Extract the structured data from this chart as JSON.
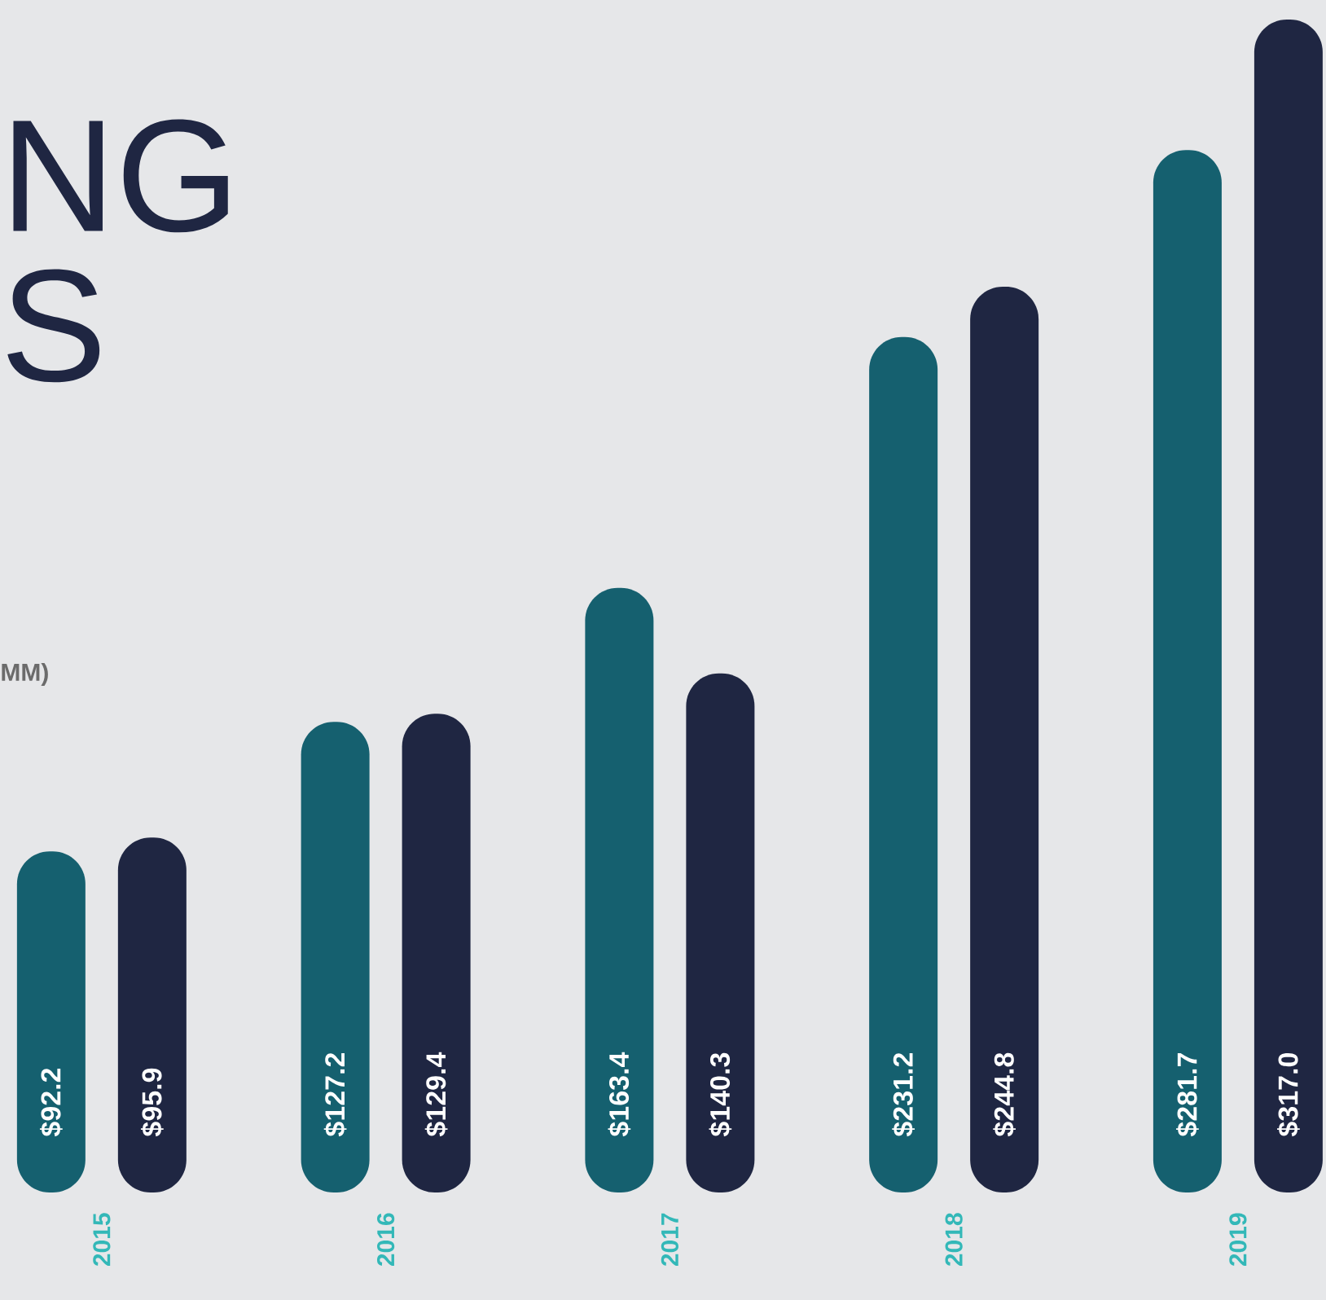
{
  "chart_data": {
    "type": "bar",
    "categories": [
      "2015",
      "2016",
      "2017",
      "2018",
      "2019"
    ],
    "series": [
      {
        "color": "#15606f",
        "values": [
          92.2,
          127.2,
          163.4,
          231.2,
          281.7
        ],
        "value_labels": [
          "$92.2",
          "$127.2",
          "$163.4",
          "$231.2",
          "$281.7"
        ]
      },
      {
        "color": "#1f2642",
        "values": [
          95.9,
          129.4,
          140.3,
          244.8,
          317.0
        ],
        "value_labels": [
          "$95.9",
          "$129.4",
          "$140.3",
          "$244.8",
          "$317.0"
        ]
      }
    ],
    "annotations": [
      "NG",
      "S",
      "MM)"
    ],
    "tick_labels": "x"
  }
}
